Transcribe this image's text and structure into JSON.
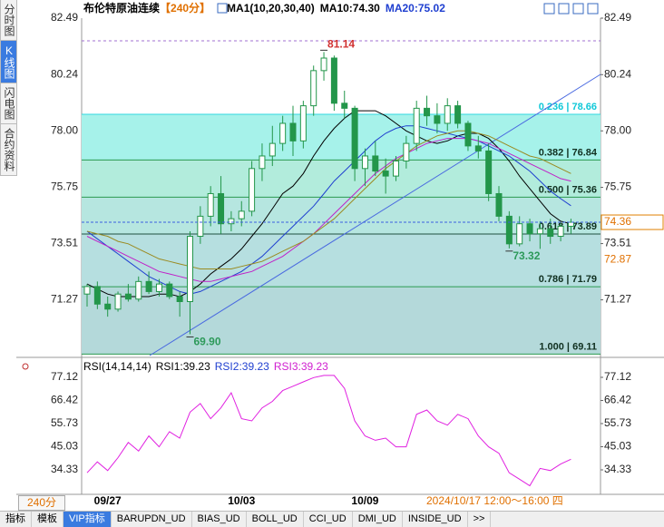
{
  "chart_data": [
    {
      "type": "candlestick",
      "title": "布伦特原油连续",
      "period": "【240分】",
      "indicator": "MA1(10,20,30,40)",
      "ma_labels": [
        "MA10:74.30",
        "MA20:75.02"
      ],
      "ma_label_colors": [
        "#000000",
        "#1f3fd0"
      ],
      "categories": [
        null,
        null,
        "09/27",
        null,
        null,
        null,
        null,
        null,
        null,
        null,
        null,
        null,
        null,
        null,
        null,
        "10/03",
        null,
        null,
        null,
        null,
        null,
        null,
        null,
        null,
        null,
        null,
        null,
        "10/09",
        null,
        null,
        null,
        null,
        null,
        null,
        null,
        null,
        null,
        null,
        null,
        null,
        null,
        null,
        null,
        null,
        null,
        null,
        null,
        null
      ],
      "open": [
        71.5,
        71.8,
        71.1,
        70.9,
        71.5,
        71.3,
        72.0,
        71.6,
        71.9,
        71.4,
        71.2,
        73.8,
        74.6,
        75.5,
        74.3,
        74.5,
        74.8,
        76.5,
        77.0,
        77.5,
        78.3,
        77.6,
        79.0,
        80.4,
        80.9,
        79.1,
        78.9,
        76.5,
        77.0,
        76.4,
        76.2,
        76.8,
        77.5,
        78.9,
        78.6,
        78.3,
        79.0,
        78.3,
        77.4,
        77.2,
        75.5,
        74.6,
        73.5,
        74.3,
        73.9,
        74.1,
        73.8,
        74.2
      ],
      "high": [
        71.9,
        72.0,
        71.4,
        71.6,
        71.9,
        72.2,
        72.4,
        72.1,
        72.0,
        71.6,
        74.0,
        75.0,
        75.8,
        76.2,
        74.8,
        75.2,
        76.8,
        77.5,
        78.2,
        78.6,
        79.0,
        79.2,
        80.6,
        81.14,
        81.0,
        79.6,
        79.0,
        77.3,
        77.6,
        76.9,
        77.0,
        77.8,
        79.2,
        79.4,
        79.1,
        79.3,
        79.2,
        78.4,
        77.8,
        77.5,
        75.8,
        74.8,
        74.6,
        74.5,
        74.4,
        74.5,
        74.3,
        74.5
      ],
      "low": [
        71.0,
        70.9,
        70.6,
        70.8,
        71.2,
        71.2,
        71.5,
        71.4,
        71.3,
        70.6,
        69.9,
        73.5,
        74.2,
        73.9,
        74.0,
        74.2,
        74.6,
        76.0,
        76.6,
        77.2,
        77.0,
        77.3,
        78.6,
        80.0,
        78.8,
        78.5,
        76.0,
        75.8,
        76.2,
        75.5,
        76.0,
        76.5,
        77.2,
        78.2,
        77.9,
        78.0,
        78.1,
        77.2,
        76.9,
        75.2,
        74.4,
        73.32,
        73.4,
        73.6,
        73.3,
        73.5,
        73.6,
        73.9
      ],
      "close": [
        71.8,
        71.1,
        70.9,
        71.5,
        71.3,
        72.0,
        71.6,
        71.9,
        71.4,
        71.2,
        73.8,
        74.6,
        75.5,
        74.3,
        74.5,
        74.8,
        76.5,
        77.0,
        77.5,
        78.3,
        77.6,
        79.0,
        80.4,
        80.9,
        79.1,
        78.9,
        76.5,
        77.0,
        76.4,
        76.2,
        76.8,
        77.5,
        78.9,
        78.6,
        78.3,
        79.0,
        78.3,
        77.4,
        77.2,
        75.5,
        74.6,
        73.5,
        74.3,
        73.9,
        74.1,
        73.8,
        74.2,
        74.36
      ],
      "up_color": "#ffffff",
      "down_color": "#23964a",
      "candle_stroke": "#23964a",
      "series": [
        {
          "color": "#000000",
          "values": [
            71.9,
            71.7,
            71.5,
            71.4,
            71.4,
            71.4,
            71.4,
            71.5,
            71.5,
            71.4,
            71.6,
            71.9,
            72.3,
            72.6,
            72.9,
            73.3,
            73.8,
            74.3,
            74.9,
            75.5,
            75.8,
            76.3,
            77.0,
            77.6,
            78.1,
            78.5,
            78.8,
            78.8,
            78.8,
            78.6,
            78.3,
            78.0,
            77.8,
            77.6,
            77.5,
            77.6,
            77.8,
            77.9,
            77.9,
            77.7,
            77.3,
            76.8,
            76.2,
            75.7,
            75.2,
            74.7,
            74.4,
            74.3
          ]
        },
        {
          "color": "#1f3fd0",
          "values": [
            74.0,
            73.7,
            73.4,
            73.1,
            72.8,
            72.5,
            72.2,
            72.0,
            71.8,
            71.6,
            71.5,
            71.6,
            71.8,
            72.0,
            72.2,
            72.4,
            72.7,
            73.0,
            73.4,
            73.8,
            74.2,
            74.6,
            75.0,
            75.5,
            76.0,
            76.4,
            76.8,
            77.2,
            77.6,
            77.9,
            78.1,
            78.2,
            78.2,
            78.1,
            78.0,
            77.9,
            77.8,
            77.7,
            77.6,
            77.4,
            77.2,
            77.0,
            76.7,
            76.4,
            76.0,
            75.6,
            75.3,
            75.02
          ]
        },
        {
          "color": "#c020c8",
          "values": [
            73.8,
            73.6,
            73.4,
            73.2,
            73.0,
            72.8,
            72.6,
            72.4,
            72.3,
            72.2,
            72.1,
            72.0,
            72.0,
            72.1,
            72.2,
            72.3,
            72.4,
            72.6,
            72.8,
            73.0,
            73.3,
            73.6,
            73.9,
            74.3,
            74.7,
            75.1,
            75.5,
            75.9,
            76.3,
            76.6,
            76.9,
            77.1,
            77.3,
            77.5,
            77.6,
            77.7,
            77.7,
            77.7,
            77.6,
            77.5,
            77.3,
            77.1,
            76.9,
            76.7,
            76.5,
            76.3,
            76.1,
            76.0
          ]
        },
        {
          "color": "#9a8a20",
          "values": [
            74.0,
            73.9,
            73.8,
            73.6,
            73.5,
            73.3,
            73.1,
            72.9,
            72.8,
            72.7,
            72.6,
            72.5,
            72.5,
            72.5,
            72.5,
            72.6,
            72.7,
            72.8,
            73.0,
            73.2,
            73.4,
            73.6,
            73.9,
            74.2,
            74.5,
            74.9,
            75.3,
            75.7,
            76.1,
            76.5,
            76.8,
            77.1,
            77.4,
            77.6,
            77.8,
            77.9,
            78.0,
            78.0,
            77.9,
            77.8,
            77.6,
            77.4,
            77.2,
            77.0,
            76.9,
            76.7,
            76.5,
            76.3
          ]
        }
      ],
      "ylim": [
        69.05,
        82.49
      ],
      "yticks": [
        82.49,
        80.24,
        {
          "value": 78,
          "label": "78.00"
        },
        75.75,
        73.51,
        71.27
      ],
      "fib_separator": " | ",
      "fib": [
        {
          "ratio": "0.236",
          "price": 78.66
        },
        {
          "ratio": "0.382",
          "price": 76.84
        },
        {
          "ratio": "0.500",
          "price": 75.36
        },
        {
          "ratio": "0.618",
          "price": 73.89
        },
        {
          "ratio": "0.786",
          "price": 71.79
        },
        {
          "ratio": "1.000",
          "price": 69.11
        }
      ],
      "current_price": 74.36,
      "marker_price": 72.87,
      "annotations": [
        {
          "index": 23,
          "label": "81.14",
          "color": "#d03030"
        },
        {
          "index": 10,
          "label": "69.90",
          "color": "#2d9a5a"
        },
        {
          "index": 41,
          "label": "73.32",
          "color": "#2d9a5a"
        }
      ]
    },
    {
      "type": "line",
      "title": "RSI(14,14,14)",
      "legend": [
        "RSI1:39.23",
        "RSI2:39.23",
        "RSI3:39.23"
      ],
      "legend_colors": [
        "#000000",
        "#1f3fd0",
        "#d020d0"
      ],
      "series": [
        {
          "color": "#e020e0",
          "values": [
            33,
            38,
            34,
            40,
            47,
            43,
            50,
            45,
            52,
            49,
            61,
            65,
            58,
            63,
            70,
            58,
            57,
            63,
            66,
            71,
            73,
            75,
            77,
            78,
            78,
            72,
            57,
            50,
            48,
            49,
            45,
            45,
            60,
            62,
            57,
            55,
            60,
            58,
            50,
            45,
            42,
            33,
            30,
            27,
            35,
            34,
            37,
            39.23
          ]
        }
      ],
      "ylim": [
        23.0,
        84.67
      ],
      "yticks": [
        77.12,
        66.42,
        55.73,
        45.03,
        34.33
      ]
    }
  ],
  "ui": {
    "side_tabs": [
      "分时图",
      "K线图",
      "闪电图",
      "合约资料"
    ],
    "period_button": "240分",
    "cursor_time": "2024/10/17 12:00～16:00 四",
    "bottom_tabs": [
      "指标",
      "模板",
      "VIP指标",
      "BARUPDN_UD",
      "BIAS_UD",
      "BOLL_UD",
      "CCI_UD",
      "DMI_UD",
      "INSIDE_UD",
      ">>"
    ]
  }
}
